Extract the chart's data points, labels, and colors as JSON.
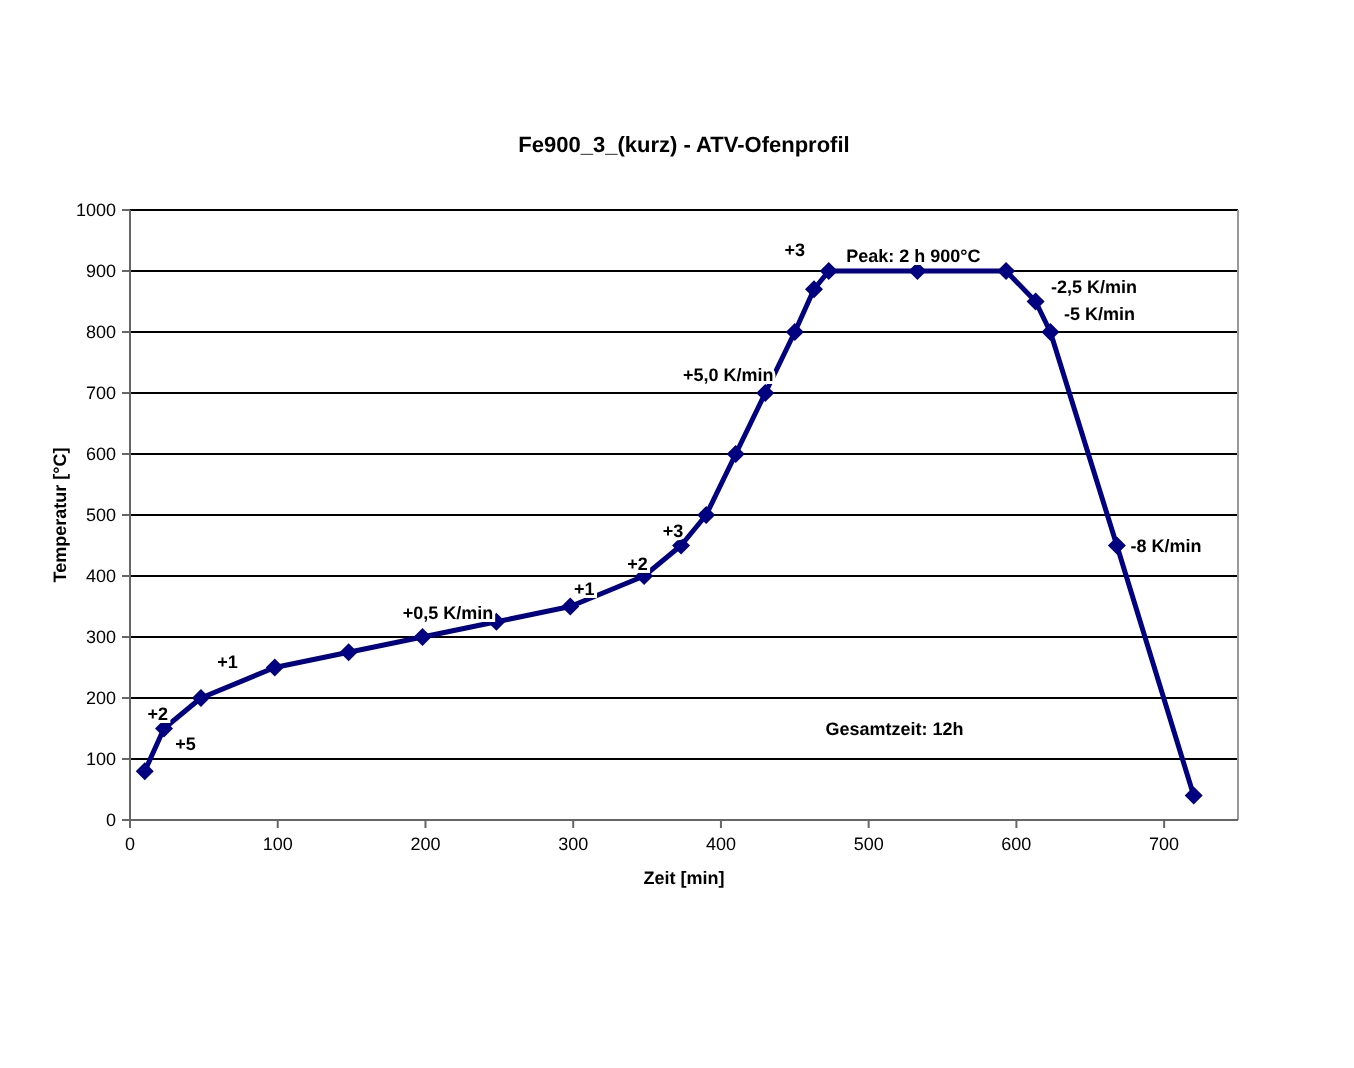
{
  "chart_data": {
    "type": "line",
    "title": "Fe900_3_(kurz) - ATV-Ofenprofil",
    "xlabel": "Zeit [min]",
    "ylabel": "Temperatur [°C]",
    "x": [
      10,
      23,
      48,
      98,
      148,
      198,
      248,
      298,
      348,
      373,
      390,
      410,
      430,
      450,
      463,
      473,
      533,
      593,
      613,
      623,
      668,
      720
    ],
    "series": [
      {
        "color": "#000080",
        "values": [
          80,
          150,
          200,
          250,
          275,
          300,
          325,
          350,
          400,
          450,
          500,
          600,
          700,
          800,
          870,
          900,
          900,
          900,
          850,
          800,
          450,
          40
        ]
      }
    ],
    "xlim": [
      0,
      750
    ],
    "xticks": [
      0,
      100,
      200,
      300,
      400,
      500,
      600,
      700
    ],
    "ylim": [
      0,
      1000
    ],
    "yticks": [
      0,
      100,
      200,
      300,
      400,
      500,
      600,
      700,
      800,
      900,
      1000
    ],
    "grid": "y",
    "marker": "diamond",
    "line_style": "solid",
    "annotations": [
      "+5",
      "+2",
      "+1",
      "+0,5 K/min",
      "+1",
      "+2",
      "+3",
      "+5,0 K/min",
      "+3",
      "Peak: 2 h 900°C",
      "-2,5 K/min",
      "-5 K/min",
      "-8 K/min",
      "Gesamtzeit: 12h"
    ]
  }
}
